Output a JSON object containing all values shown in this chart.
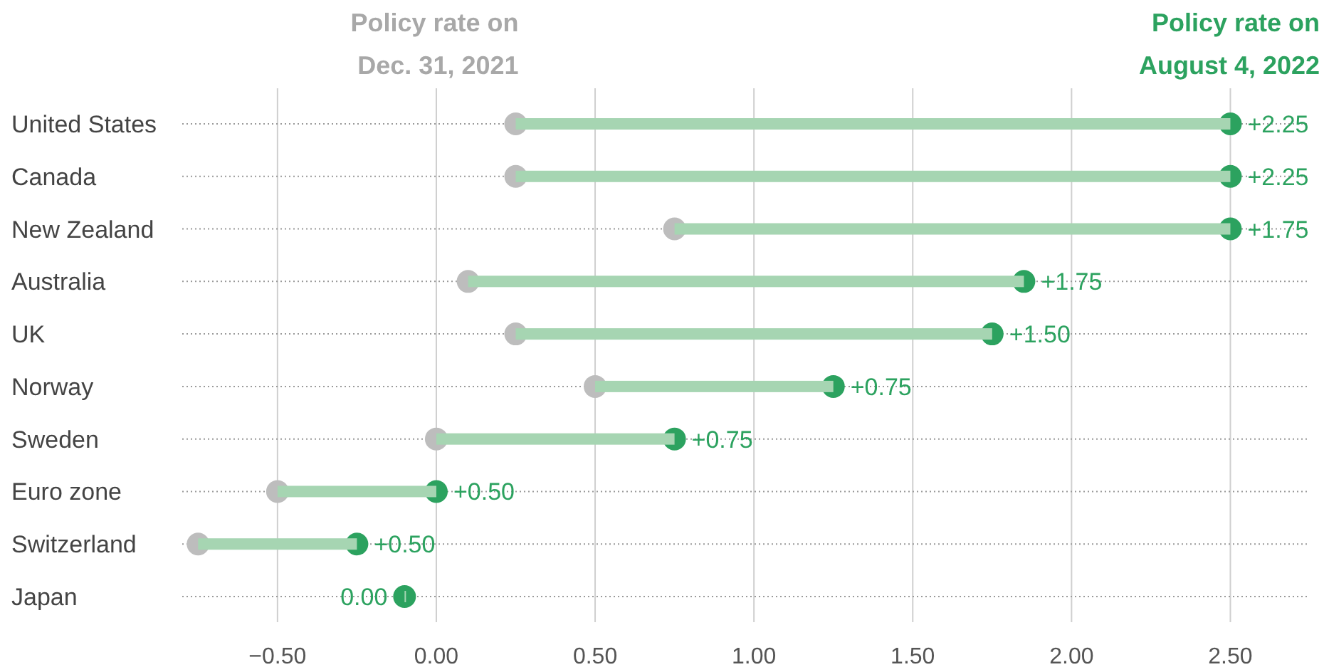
{
  "chart_data": {
    "type": "bar",
    "orientation": "horizontal",
    "categories": [
      "United States",
      "Canada",
      "New Zealand",
      "Australia",
      "UK",
      "Norway",
      "Sweden",
      "Euro zone",
      "Switzerland",
      "Japan"
    ],
    "series": [
      {
        "color": "#a6d5b2",
        "base": [
          0.25,
          0.25,
          0.75,
          0.1,
          0.25,
          0.5,
          0,
          -0.5,
          -0.75,
          -0.1
        ],
        "values": [
          2.25,
          2.25,
          1.75,
          1.75,
          1.5,
          0.75,
          0.75,
          0.5,
          0.5,
          0
        ],
        "value_labels": [
          "+2.25",
          "+2.25",
          "+1.75",
          "+1.75",
          "+1.50",
          "+0.75",
          "+0.75",
          "+0.50",
          "+0.50",
          "0.00"
        ]
      },
      {
        "type": "scatter",
        "name": "Policy rate on Dec. 31, 2021",
        "color": "#bdbdbd",
        "values": [
          0.25,
          0.25,
          0.75,
          0.1,
          0.25,
          0.5,
          0,
          -0.5,
          -0.75,
          null
        ]
      },
      {
        "type": "scatter",
        "name": "Policy rate on August 4, 2022",
        "color": "#2ca25f",
        "values": [
          2.5,
          2.5,
          2.5,
          1.85,
          1.75,
          1.25,
          0.75,
          0,
          -0.25,
          -0.1
        ]
      }
    ],
    "xlim": [
      -0.8,
      2.75
    ],
    "xticks": [
      {
        "value": -0.5,
        "label": "−0.50"
      },
      {
        "value": 0,
        "label": "0.00"
      },
      {
        "value": 0.5,
        "label": "0.50"
      },
      {
        "value": 1,
        "label": "1.00"
      },
      {
        "value": 1.5,
        "label": "1.50"
      },
      {
        "value": 2,
        "label": "2.00"
      },
      {
        "value": 2.5,
        "label": "2.50"
      }
    ],
    "grid": true,
    "marker": "circle"
  }
}
